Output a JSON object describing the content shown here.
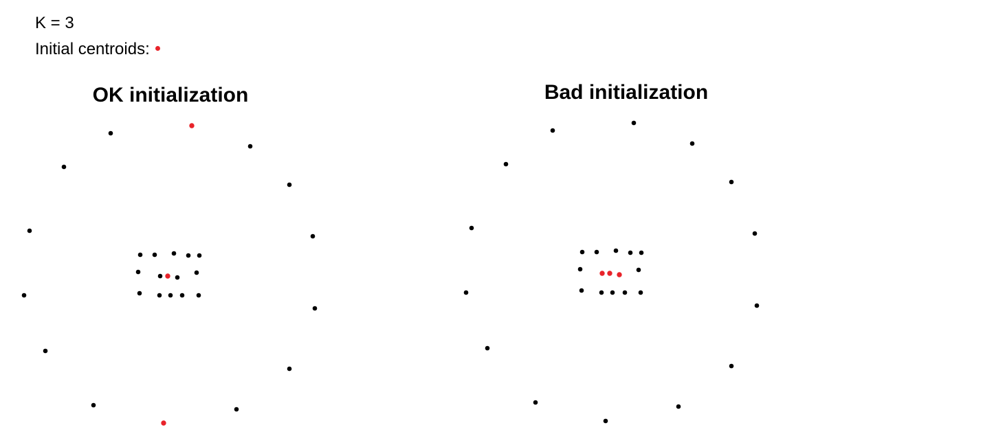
{
  "legend": {
    "k_label": "K = 3",
    "centroid_label": "Initial centroids:"
  },
  "colors": {
    "data_point": "#000000",
    "centroid": "#e8232a"
  },
  "panels": [
    {
      "id": "ok",
      "title": "OK initialization",
      "points": [
        [
          161,
          194
        ],
        [
          364,
          213
        ],
        [
          93,
          243
        ],
        [
          421,
          269
        ],
        [
          43,
          336
        ],
        [
          455,
          344
        ],
        [
          204,
          371
        ],
        [
          225,
          371
        ],
        [
          253,
          369
        ],
        [
          274,
          372
        ],
        [
          290,
          372
        ],
        [
          201,
          396
        ],
        [
          233,
          402
        ],
        [
          258,
          404
        ],
        [
          286,
          397
        ],
        [
          203,
          427
        ],
        [
          232,
          430
        ],
        [
          248,
          430
        ],
        [
          265,
          430
        ],
        [
          289,
          430
        ],
        [
          35,
          430
        ],
        [
          458,
          449
        ],
        [
          66,
          511
        ],
        [
          421,
          537
        ],
        [
          136,
          590
        ],
        [
          344,
          596
        ]
      ],
      "centroids": [
        [
          279,
          183
        ],
        [
          244,
          402
        ],
        [
          238,
          616
        ]
      ]
    },
    {
      "id": "bad",
      "title": "Bad initialization",
      "points": [
        [
          804,
          190
        ],
        [
          922,
          179
        ],
        [
          1007,
          209
        ],
        [
          736,
          239
        ],
        [
          1064,
          265
        ],
        [
          686,
          332
        ],
        [
          1098,
          340
        ],
        [
          847,
          367
        ],
        [
          868,
          367
        ],
        [
          896,
          365
        ],
        [
          917,
          368
        ],
        [
          933,
          368
        ],
        [
          844,
          392
        ],
        [
          929,
          393
        ],
        [
          846,
          423
        ],
        [
          875,
          426
        ],
        [
          891,
          426
        ],
        [
          909,
          426
        ],
        [
          932,
          426
        ],
        [
          678,
          426
        ],
        [
          1101,
          445
        ],
        [
          709,
          507
        ],
        [
          1064,
          533
        ],
        [
          779,
          586
        ],
        [
          881,
          613
        ],
        [
          987,
          592
        ]
      ],
      "centroids": [
        [
          876,
          398
        ],
        [
          887,
          398
        ],
        [
          901,
          400
        ]
      ]
    }
  ]
}
